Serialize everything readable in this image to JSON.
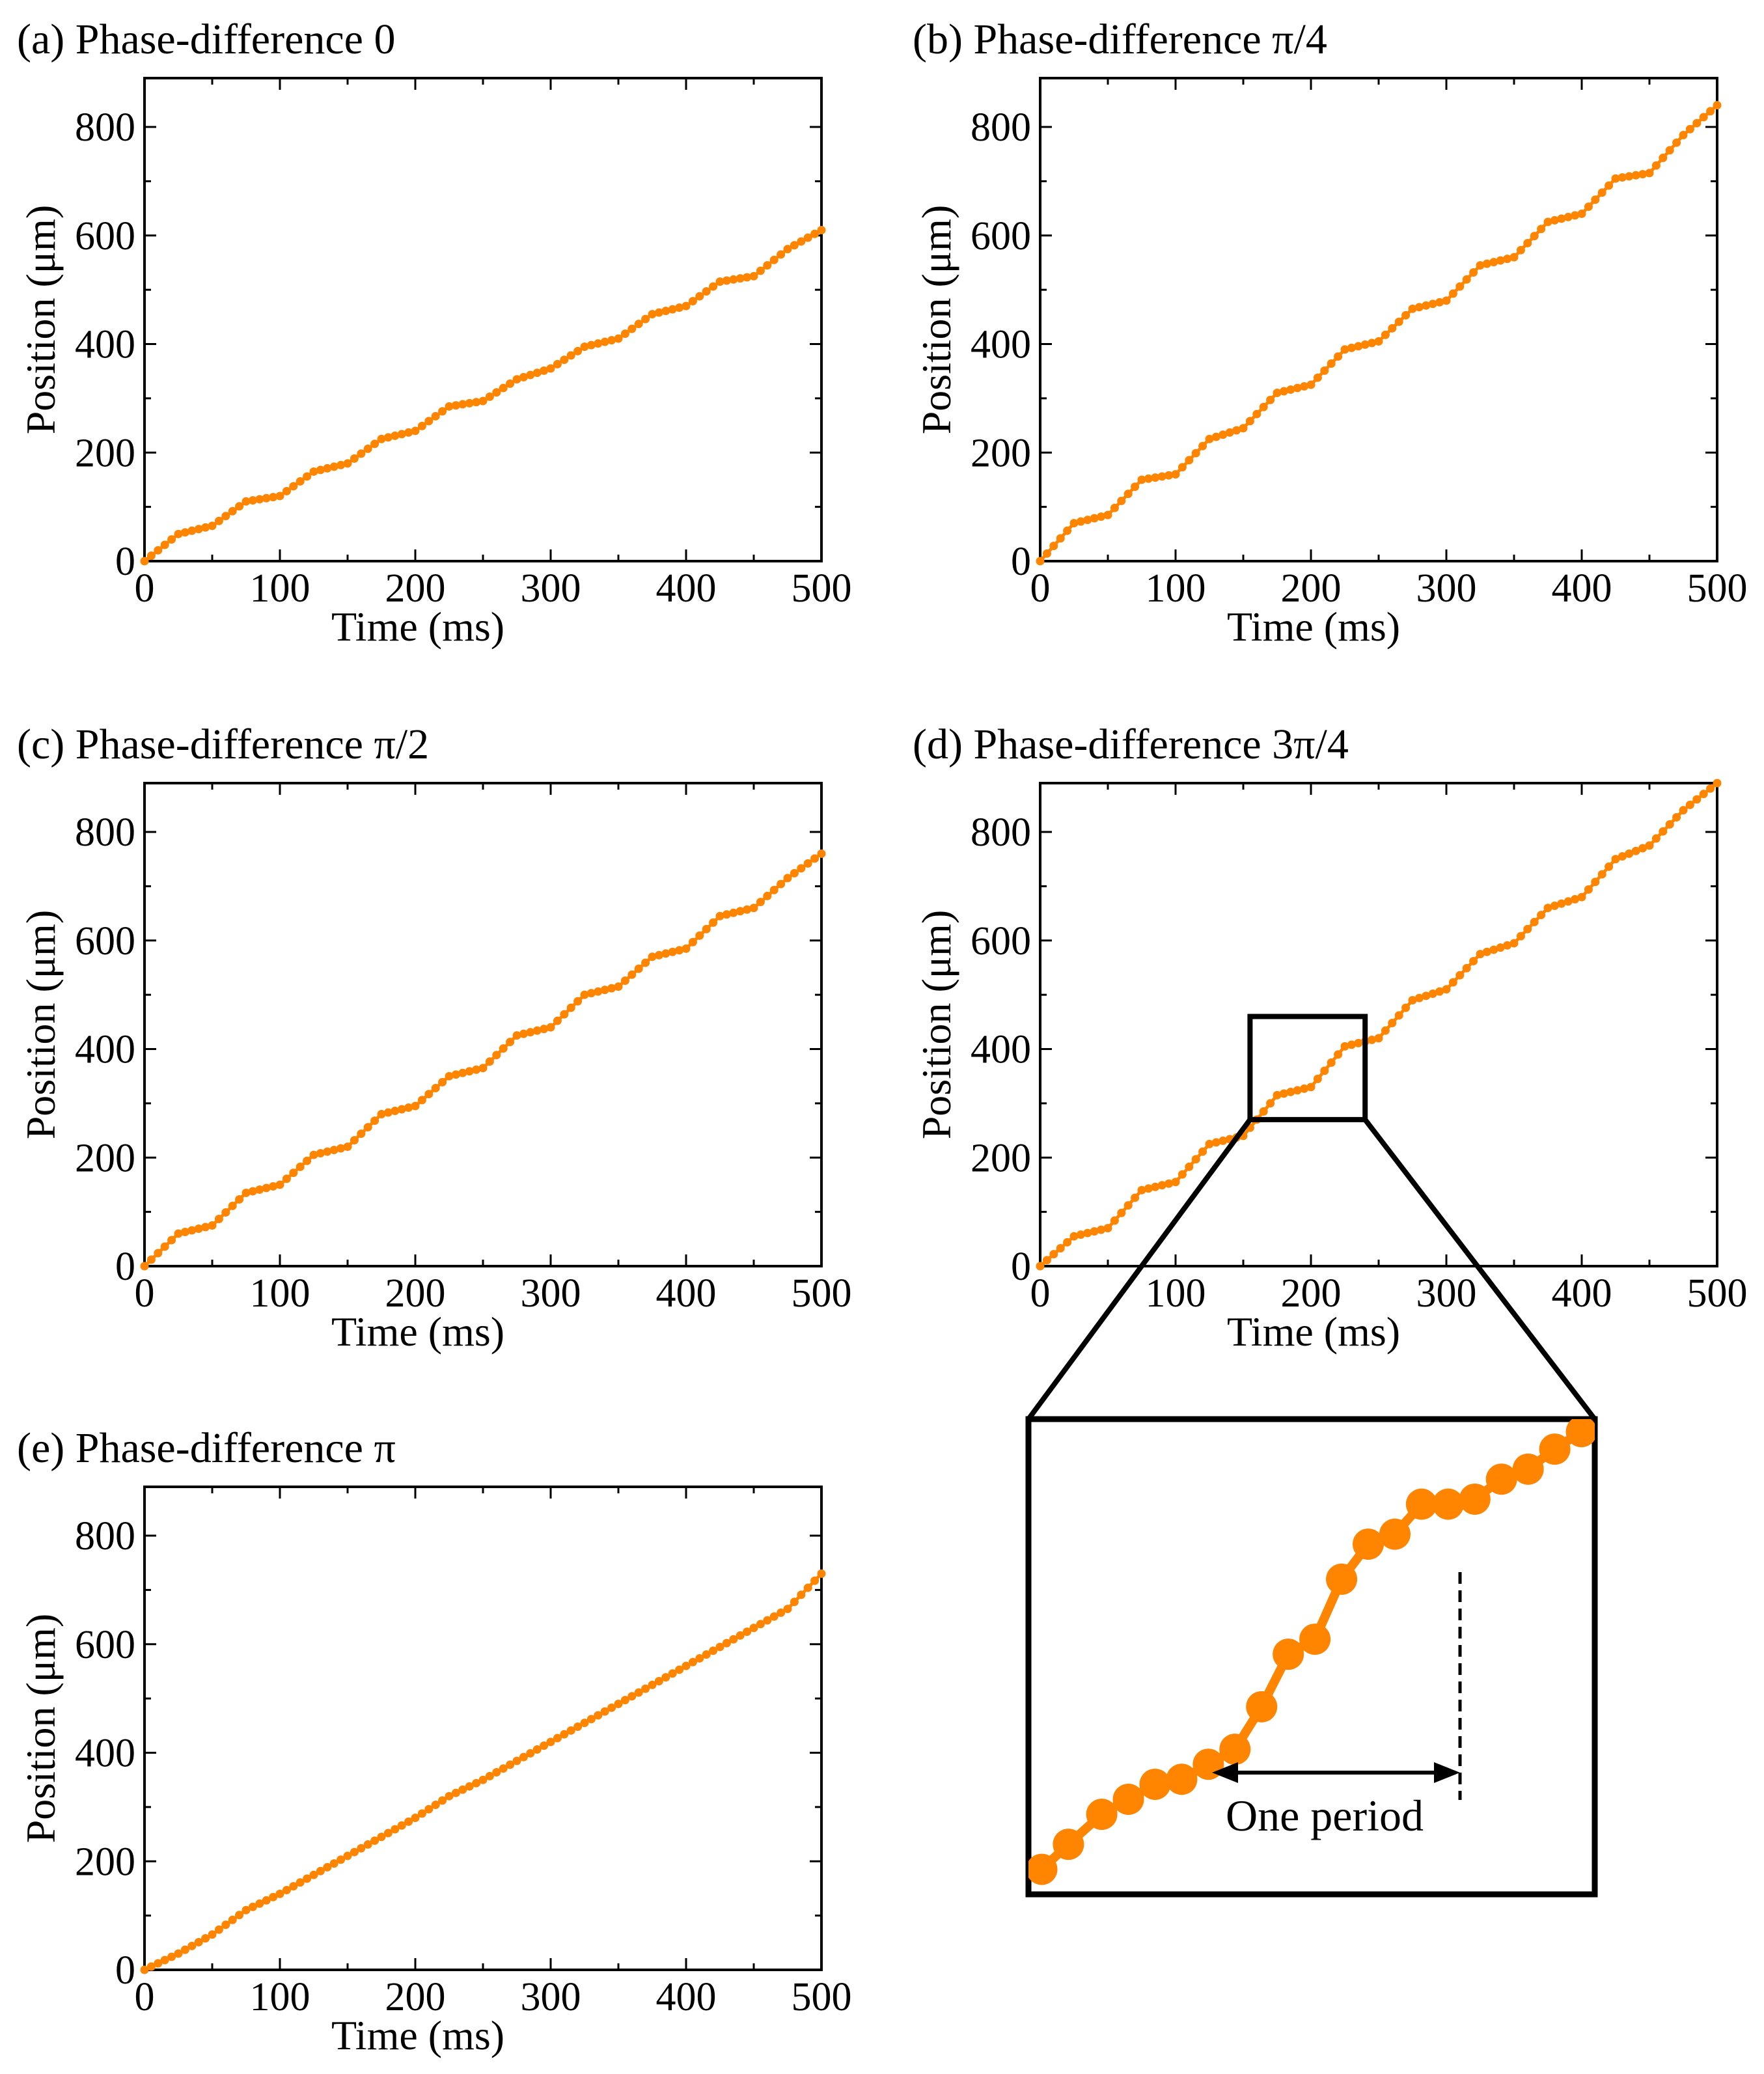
{
  "colors": {
    "series": "#ff8400",
    "axis": "#000000",
    "background": "#ffffff"
  },
  "chart_data": [
    {
      "type": "scatter",
      "panel": "a",
      "title": "(a) Phase-difference 0",
      "xlabel": "Time (ms)",
      "ylabel": "Position (μm)",
      "xlim": [
        0,
        500
      ],
      "ylim": [
        0,
        890
      ],
      "xticks": [
        0,
        100,
        200,
        300,
        400,
        500
      ],
      "yticks": [
        0,
        200,
        400,
        600,
        800
      ],
      "grid": false,
      "series": [
        {
          "name": "position",
          "x": [
            0,
            25,
            50,
            75,
            100,
            125,
            150,
            175,
            200,
            225,
            250,
            275,
            300,
            325,
            350,
            375,
            400,
            425,
            450,
            475,
            500
          ],
          "y": [
            0,
            50,
            65,
            110,
            120,
            165,
            180,
            225,
            240,
            285,
            295,
            335,
            355,
            395,
            410,
            455,
            470,
            515,
            525,
            575,
            610
          ]
        }
      ]
    },
    {
      "type": "scatter",
      "panel": "b",
      "title": "(b) Phase-difference π/4",
      "xlabel": "Time (ms)",
      "ylabel": "Position (μm)",
      "xlim": [
        0,
        500
      ],
      "ylim": [
        0,
        890
      ],
      "xticks": [
        0,
        100,
        200,
        300,
        400,
        500
      ],
      "yticks": [
        0,
        200,
        400,
        600,
        800
      ],
      "grid": false,
      "series": [
        {
          "name": "position",
          "x": [
            0,
            25,
            50,
            75,
            100,
            125,
            150,
            175,
            200,
            225,
            250,
            275,
            300,
            325,
            350,
            375,
            400,
            425,
            450,
            475,
            500
          ],
          "y": [
            0,
            70,
            85,
            150,
            160,
            225,
            245,
            310,
            325,
            390,
            405,
            465,
            480,
            545,
            560,
            625,
            640,
            705,
            715,
            785,
            840
          ]
        }
      ]
    },
    {
      "type": "scatter",
      "panel": "c",
      "title": "(c) Phase-difference π/2",
      "xlabel": "Time (ms)",
      "ylabel": "Position (μm)",
      "xlim": [
        0,
        500
      ],
      "ylim": [
        0,
        890
      ],
      "xticks": [
        0,
        100,
        200,
        300,
        400,
        500
      ],
      "yticks": [
        0,
        200,
        400,
        600,
        800
      ],
      "grid": false,
      "series": [
        {
          "name": "position",
          "x": [
            0,
            25,
            50,
            75,
            100,
            125,
            150,
            175,
            200,
            225,
            250,
            275,
            300,
            325,
            350,
            375,
            400,
            425,
            450,
            475,
            500
          ],
          "y": [
            0,
            60,
            75,
            135,
            150,
            205,
            220,
            280,
            295,
            350,
            365,
            425,
            440,
            500,
            515,
            570,
            585,
            645,
            660,
            715,
            760
          ]
        }
      ]
    },
    {
      "type": "scatter",
      "panel": "d",
      "title": "(d) Phase-difference 3π/4",
      "xlabel": "Time (ms)",
      "ylabel": "Position (μm)",
      "xlim": [
        0,
        500
      ],
      "ylim": [
        0,
        890
      ],
      "xticks": [
        0,
        100,
        200,
        300,
        400,
        500
      ],
      "yticks": [
        0,
        200,
        400,
        600,
        800
      ],
      "grid": false,
      "zoom_region": {
        "x": [
          155,
          240
        ],
        "y": [
          270,
          460
        ]
      },
      "series": [
        {
          "name": "position",
          "x": [
            0,
            25,
            50,
            75,
            100,
            125,
            150,
            175,
            200,
            225,
            250,
            275,
            300,
            325,
            350,
            375,
            400,
            425,
            450,
            475,
            500
          ],
          "y": [
            0,
            55,
            70,
            140,
            155,
            225,
            240,
            315,
            330,
            405,
            420,
            490,
            510,
            575,
            595,
            660,
            680,
            750,
            775,
            840,
            890
          ]
        }
      ]
    },
    {
      "type": "scatter",
      "panel": "e",
      "title": "(e) Phase-difference π",
      "xlabel": "Time (ms)",
      "ylabel": "Position (μm)",
      "xlim": [
        0,
        500
      ],
      "ylim": [
        0,
        890
      ],
      "xticks": [
        0,
        100,
        200,
        300,
        400,
        500
      ],
      "yticks": [
        0,
        200,
        400,
        600,
        800
      ],
      "grid": false,
      "series": [
        {
          "name": "position",
          "x": [
            0,
            25,
            50,
            75,
            100,
            125,
            150,
            175,
            200,
            225,
            250,
            275,
            300,
            325,
            350,
            375,
            400,
            425,
            450,
            475,
            500
          ],
          "y": [
            0,
            30,
            65,
            110,
            140,
            175,
            210,
            245,
            280,
            320,
            350,
            385,
            420,
            455,
            490,
            525,
            560,
            595,
            630,
            665,
            730
          ]
        }
      ]
    }
  ],
  "inset": {
    "annotation": "One period",
    "x": [
      157,
      161,
      166,
      170,
      174,
      178,
      182,
      186,
      190,
      194,
      198,
      202,
      206,
      210,
      214,
      218,
      222,
      226,
      230,
      234,
      238
    ],
    "y": [
      280,
      290,
      302,
      308,
      314,
      316,
      322,
      328,
      345,
      366,
      372,
      396,
      410,
      414,
      426,
      426,
      428,
      436,
      440,
      448,
      455
    ]
  }
}
